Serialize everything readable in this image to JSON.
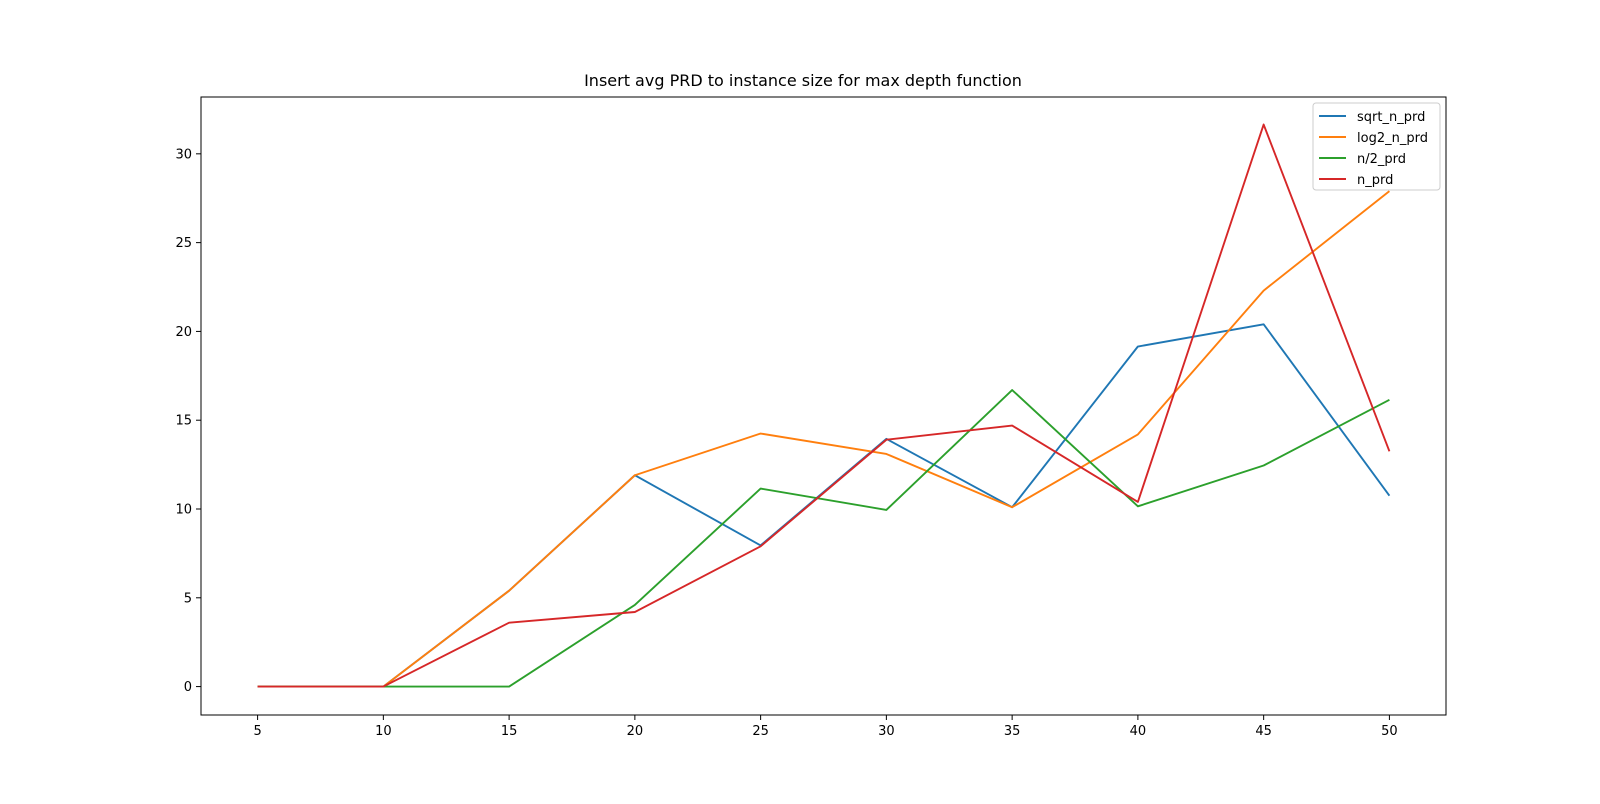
{
  "chart_data": {
    "type": "line",
    "title": "Insert avg PRD to instance size for max depth function",
    "xlabel": "",
    "ylabel": "",
    "x": [
      5,
      10,
      15,
      20,
      25,
      30,
      35,
      40,
      45,
      50
    ],
    "xlim": [
      2.75,
      52.25
    ],
    "ylim": [
      -1.6,
      33.2
    ],
    "xticks": [
      5,
      10,
      15,
      20,
      25,
      30,
      35,
      40,
      45,
      50
    ],
    "yticks": [
      0,
      5,
      10,
      15,
      20,
      25,
      30
    ],
    "grid": false,
    "legend_position": "top-right",
    "series": [
      {
        "name": "sqrt_n_prd",
        "color": "#1f77b4",
        "values": [
          0,
          0,
          5.4,
          11.9,
          7.95,
          13.95,
          10.1,
          19.15,
          20.4,
          10.75
        ]
      },
      {
        "name": "log2_n_prd",
        "color": "#ff7f0e",
        "values": [
          0,
          0,
          5.4,
          11.9,
          14.25,
          13.1,
          10.1,
          14.2,
          22.3,
          27.9
        ]
      },
      {
        "name": "n/2_prd",
        "color": "#2ca02c",
        "values": [
          0,
          0,
          0,
          4.6,
          11.15,
          9.95,
          16.7,
          10.15,
          12.45,
          16.15
        ]
      },
      {
        "name": "n_prd",
        "color": "#d62728",
        "values": [
          0,
          0,
          3.6,
          4.2,
          7.9,
          13.9,
          14.7,
          10.4,
          31.65,
          13.25
        ]
      }
    ]
  }
}
